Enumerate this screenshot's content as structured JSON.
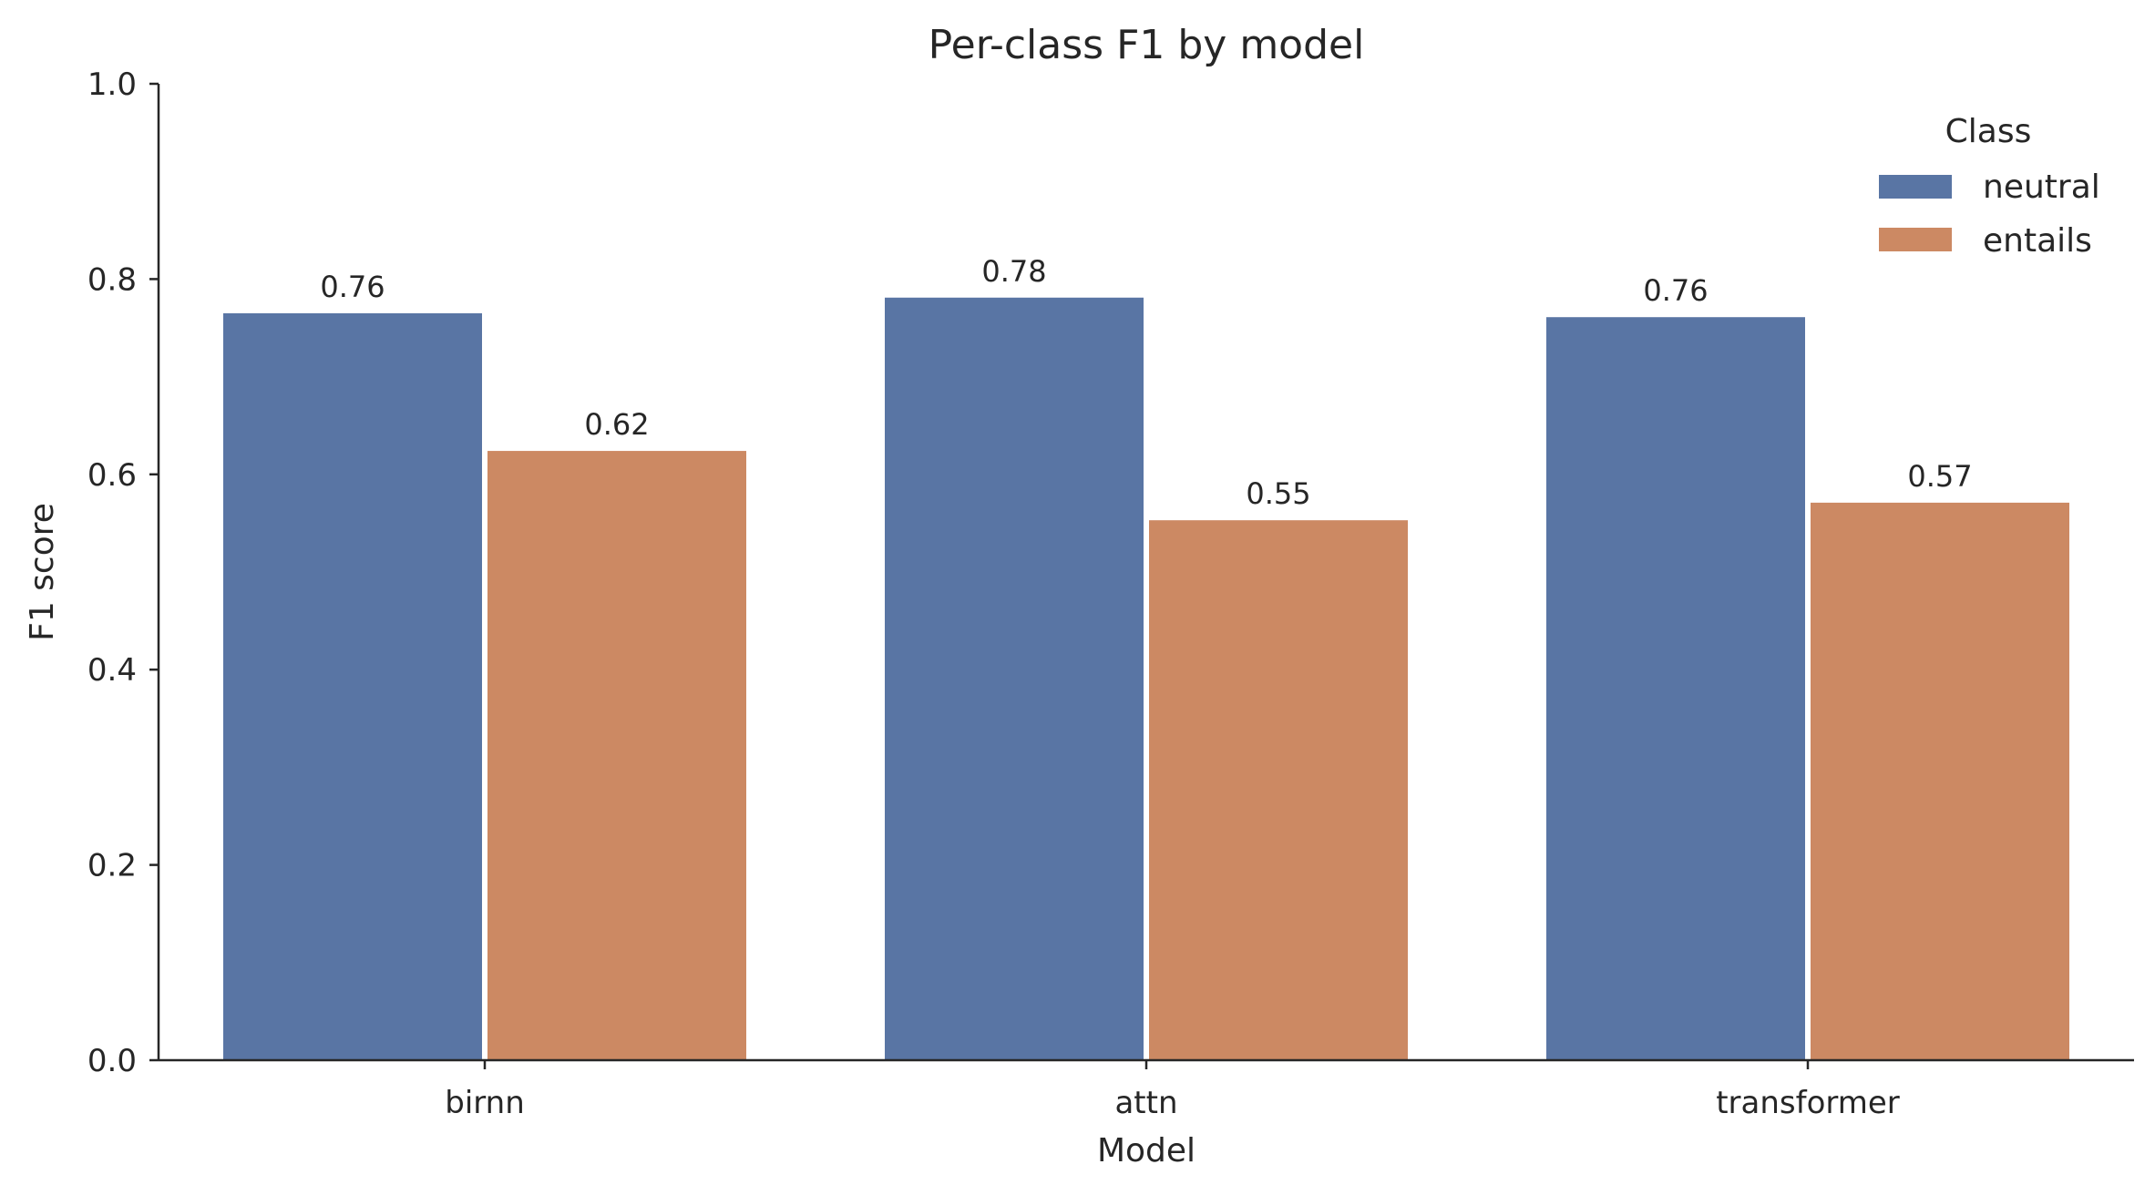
{
  "chart_data": {
    "type": "bar",
    "title": "Per-class F1 by model",
    "xlabel": "Model",
    "ylabel": "F1 score",
    "ylim": [
      0,
      1.0
    ],
    "yticks": [
      "0.0",
      "0.2",
      "0.4",
      "0.6",
      "0.8",
      "1.0"
    ],
    "categories": [
      "birnn",
      "attn",
      "transformer"
    ],
    "series": [
      {
        "name": "neutral",
        "color": "#5975a4",
        "values": [
          0.765,
          0.781,
          0.761
        ],
        "labels": [
          "0.76",
          "0.78",
          "0.76"
        ]
      },
      {
        "name": "entails",
        "color": "#cc8963",
        "values": [
          0.624,
          0.553,
          0.571
        ],
        "labels": [
          "0.62",
          "0.55",
          "0.57"
        ]
      }
    ],
    "legend": {
      "title": "Class",
      "placement": "top-right"
    },
    "grid": false
  }
}
